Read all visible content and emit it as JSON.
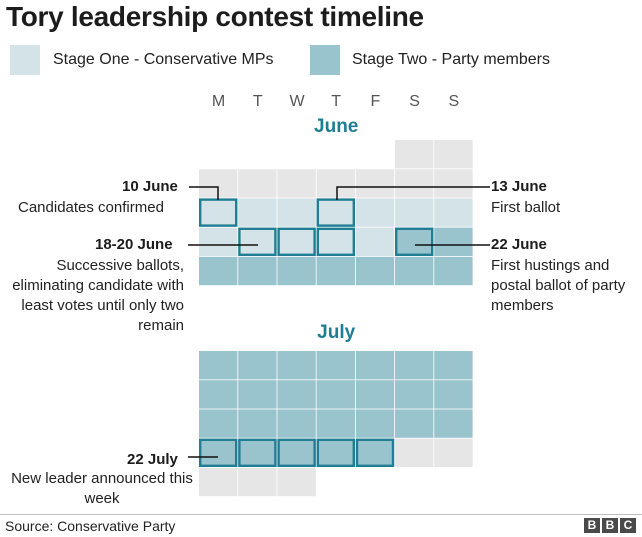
{
  "title": "Tory leadership contest timeline",
  "legend": [
    {
      "label": "Stage One - Conservative MPs",
      "color": "#d4e3e7"
    },
    {
      "label": "Stage Two - Party members",
      "color": "#99c3cd"
    }
  ],
  "colors": {
    "empty": "#e6e6e6",
    "stage1": "#d4e3e7",
    "stage2": "#99c3cd",
    "highlight_border": "#1f7e94",
    "month_label": "#1f7e94"
  },
  "weekdays": [
    "M",
    "T",
    "W",
    "T",
    "F",
    "S",
    "S"
  ],
  "months": [
    {
      "name": "June",
      "rows": [
        [
          "none",
          "none",
          "none",
          "none",
          "none",
          "empty",
          "empty"
        ],
        [
          "empty",
          "empty",
          "empty",
          "empty",
          "empty",
          "empty",
          "empty"
        ],
        [
          "stage1",
          "stage1",
          "stage1",
          "stage1",
          "stage1",
          "stage1",
          "stage1"
        ],
        [
          "stage1",
          "stage1",
          "stage1",
          "stage1",
          "stage1",
          "stage2",
          "stage2"
        ],
        [
          "stage2",
          "stage2",
          "stage2",
          "stage2",
          "stage2",
          "stage2",
          "stage2"
        ]
      ],
      "highlights": [
        [
          2,
          0
        ],
        [
          2,
          3
        ],
        [
          3,
          1
        ],
        [
          3,
          2
        ],
        [
          3,
          3
        ],
        [
          3,
          5
        ]
      ]
    },
    {
      "name": "July",
      "rows": [
        [
          "stage2",
          "stage2",
          "stage2",
          "stage2",
          "stage2",
          "stage2",
          "stage2"
        ],
        [
          "stage2",
          "stage2",
          "stage2",
          "stage2",
          "stage2",
          "stage2",
          "stage2"
        ],
        [
          "stage2",
          "stage2",
          "stage2",
          "stage2",
          "stage2",
          "stage2",
          "stage2"
        ],
        [
          "stage2",
          "stage2",
          "stage2",
          "stage2",
          "stage2",
          "empty",
          "empty"
        ],
        [
          "empty",
          "empty",
          "empty",
          "none",
          "none",
          "none",
          "none"
        ]
      ],
      "highlights": [
        [
          3,
          0
        ],
        [
          3,
          1
        ],
        [
          3,
          2
        ],
        [
          3,
          3
        ],
        [
          3,
          4
        ]
      ]
    }
  ],
  "annotations": {
    "june10": {
      "date": "10 June",
      "text": "Candidates confirmed"
    },
    "june13": {
      "date": "13 June",
      "text": "First ballot"
    },
    "june18": {
      "date": "18-20 June",
      "text": "Successive ballots, eliminating candidate with least votes until only two remain"
    },
    "june22": {
      "date": "22 June",
      "text": "First hustings and postal ballot of party members"
    },
    "july22": {
      "date": "22 July",
      "text": "New leader announced this week"
    }
  },
  "source": "Source: Conservative Party",
  "logo": "BBC"
}
